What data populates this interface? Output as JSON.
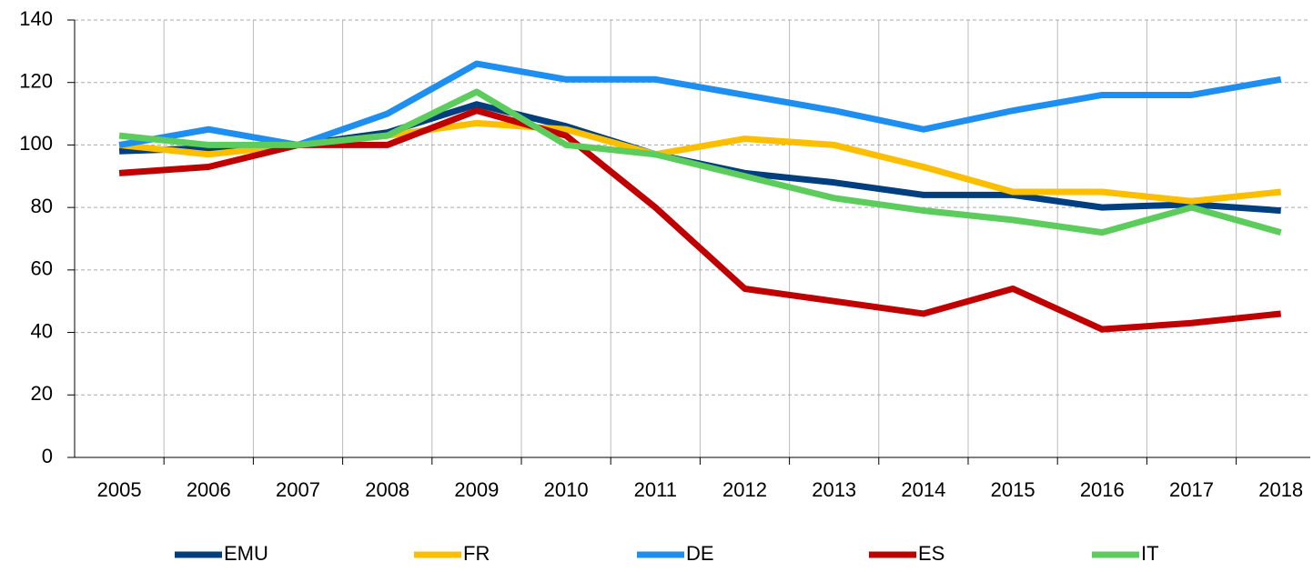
{
  "chart_data": {
    "type": "line",
    "categories": [
      "2005",
      "2006",
      "2007",
      "2008",
      "2009",
      "2010",
      "2011",
      "2012",
      "2013",
      "2014",
      "2015",
      "2016",
      "2017",
      "2018"
    ],
    "series": [
      {
        "name": "EMU",
        "color": "#003f7f",
        "values": [
          98,
          99,
          100,
          104,
          113,
          106,
          97,
          91,
          88,
          84,
          84,
          80,
          81,
          79
        ]
      },
      {
        "name": "FR",
        "color": "#fbbf00",
        "values": [
          100,
          97,
          100,
          103,
          107,
          105,
          97,
          102,
          100,
          93,
          85,
          85,
          82,
          85
        ]
      },
      {
        "name": "DE",
        "color": "#1e8ff0",
        "values": [
          100,
          105,
          100,
          110,
          126,
          121,
          121,
          116,
          111,
          105,
          111,
          116,
          116,
          121
        ]
      },
      {
        "name": "ES",
        "color": "#c00000",
        "values": [
          91,
          93,
          100,
          100,
          111,
          103,
          80,
          54,
          50,
          46,
          54,
          41,
          43,
          46
        ]
      },
      {
        "name": "IT",
        "color": "#5ccc5c",
        "values": [
          103,
          100,
          100,
          103,
          117,
          100,
          97,
          90,
          83,
          79,
          76,
          72,
          80,
          72
        ]
      }
    ],
    "ylim": [
      0,
      140
    ],
    "yticks": [
      0,
      20,
      40,
      60,
      80,
      100,
      120,
      140
    ],
    "grid": true,
    "legend": "bottom"
  }
}
